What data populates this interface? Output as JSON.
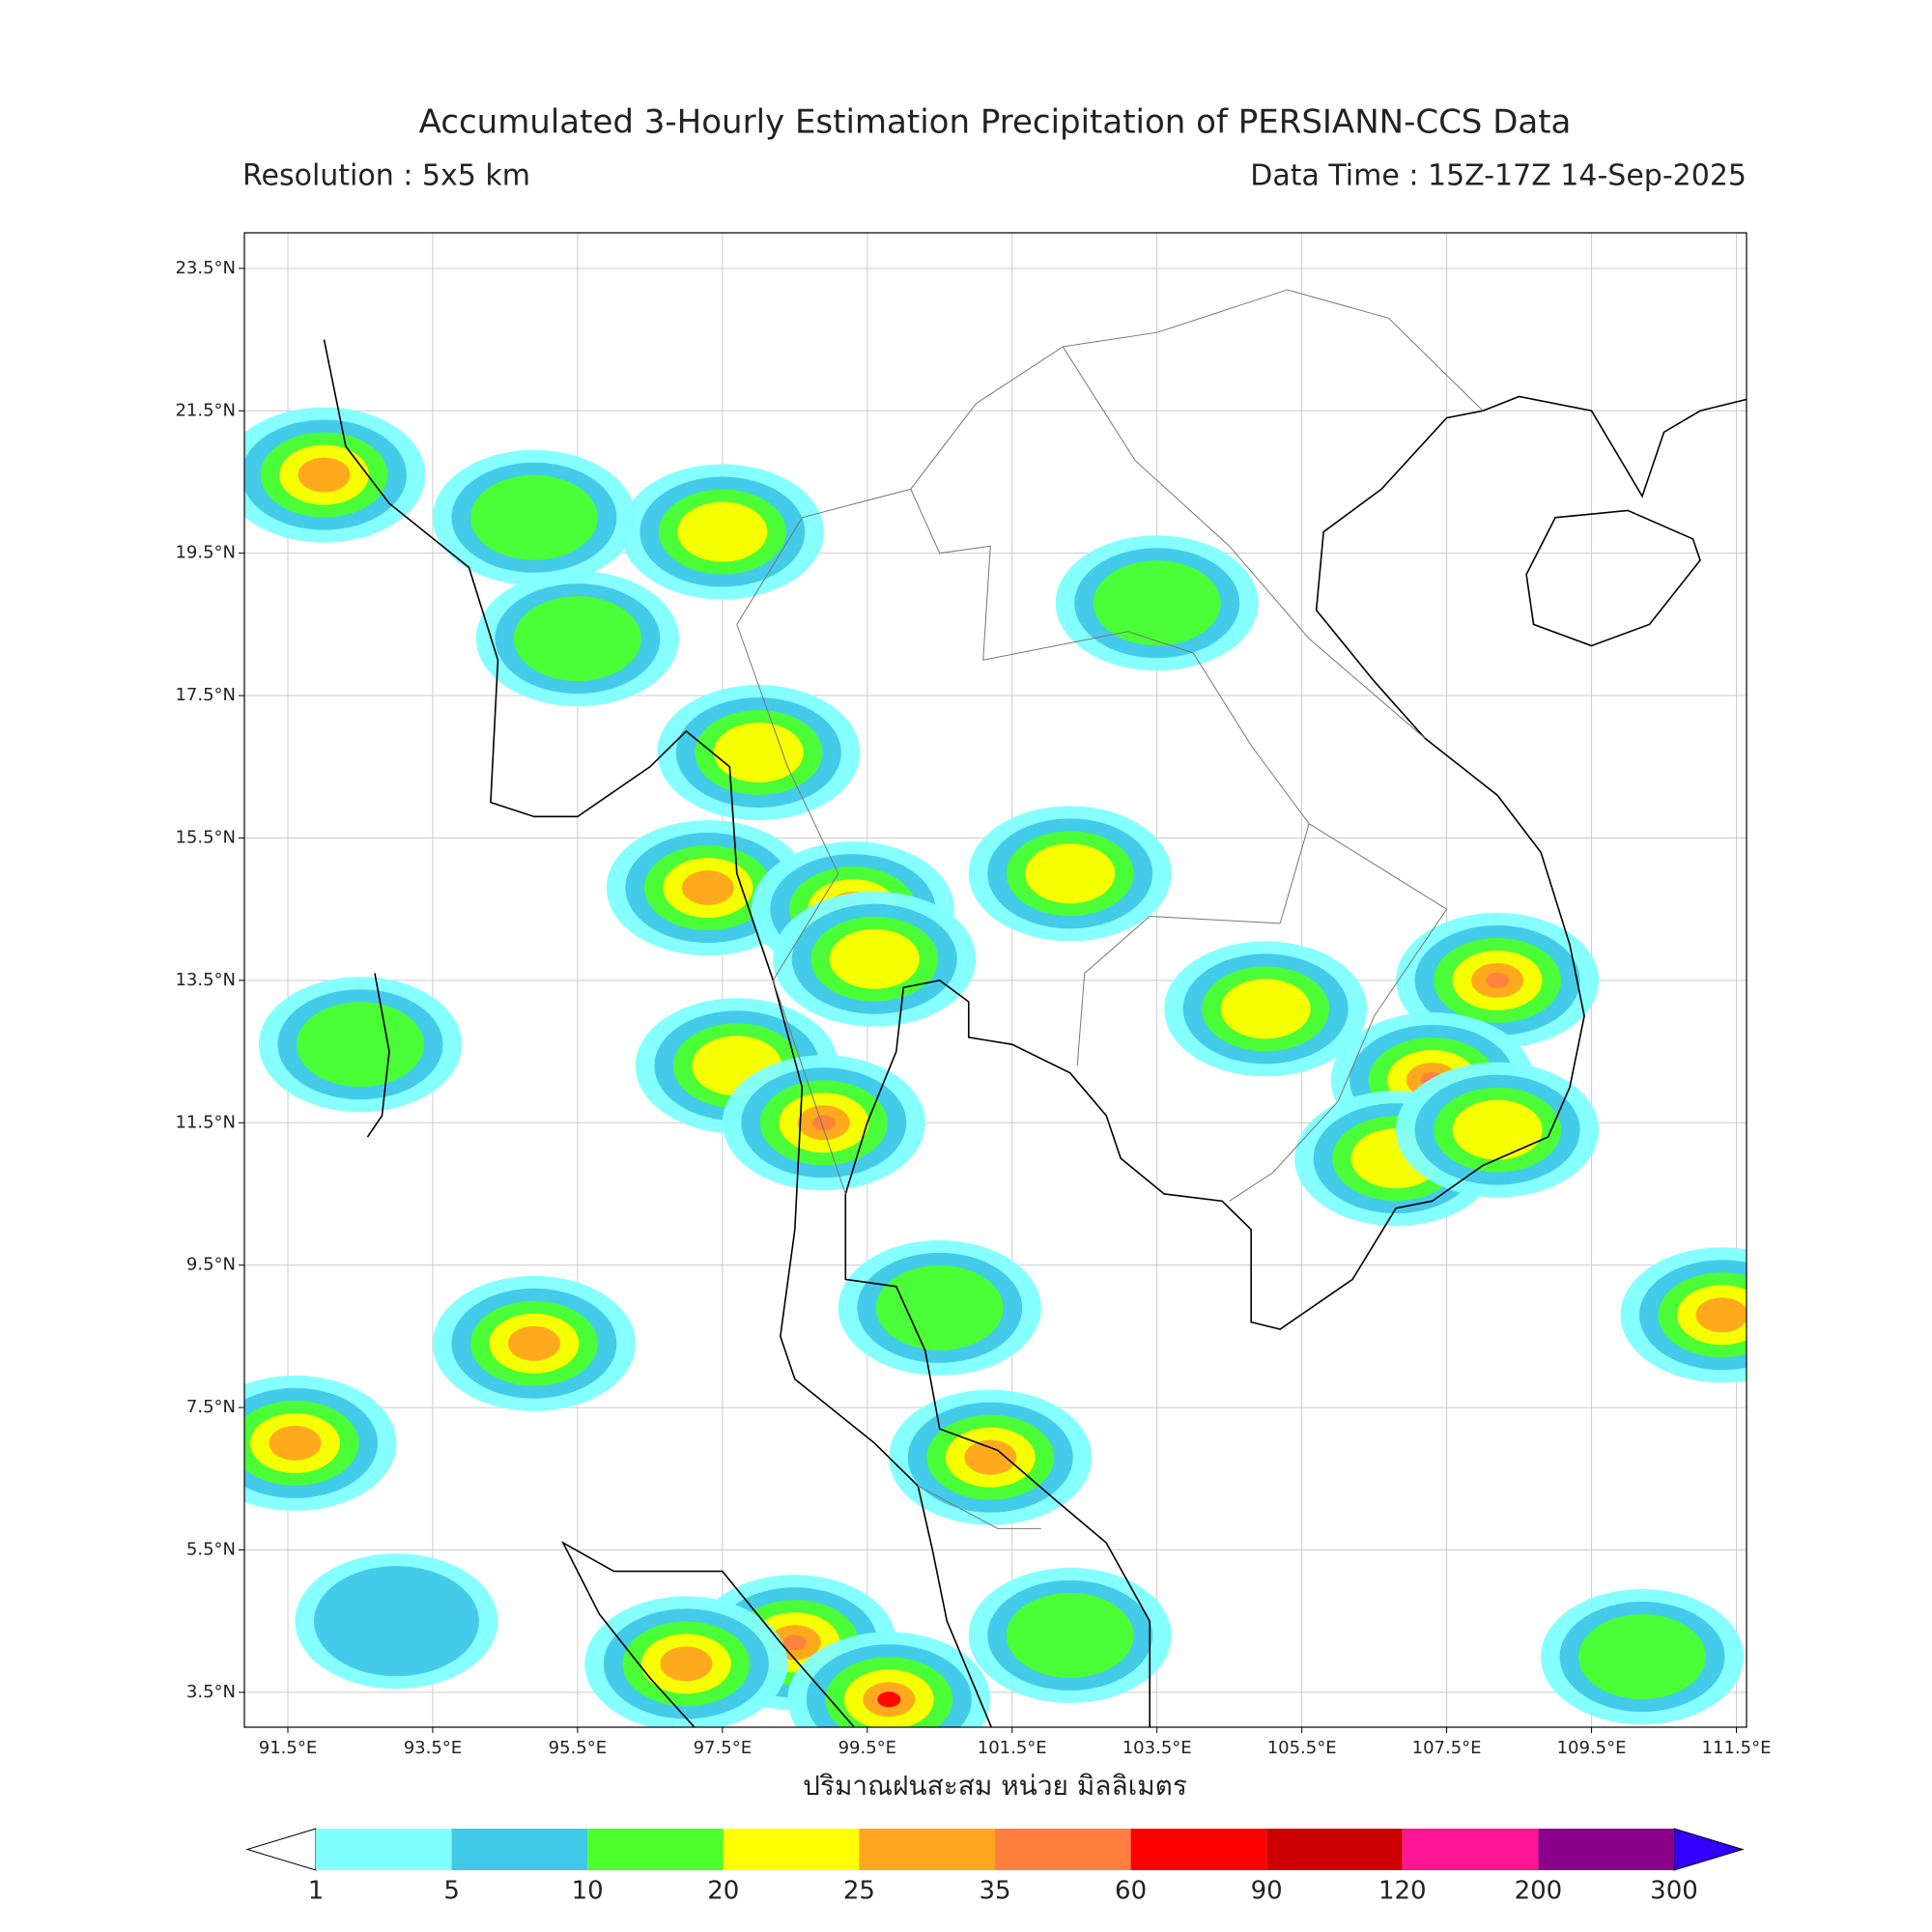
{
  "header": {
    "title": "Accumulated 3-Hourly Estimation Precipitation of PERSIANN-CCS Data",
    "resolution": "Resolution : 5x5 km",
    "data_time": "Data Time : 15Z-17Z 14-Sep-2025"
  },
  "map": {
    "lonlim": [
      90.9,
      111.64
    ],
    "latlim": [
      3.01,
      24.0
    ],
    "xticks": [
      {
        "value": 91.5,
        "label": "91.5°E"
      },
      {
        "value": 93.5,
        "label": "93.5°E"
      },
      {
        "value": 95.5,
        "label": "95.5°E"
      },
      {
        "value": 97.5,
        "label": "97.5°E"
      },
      {
        "value": 99.5,
        "label": "99.5°E"
      },
      {
        "value": 101.5,
        "label": "101.5°E"
      },
      {
        "value": 103.5,
        "label": "103.5°E"
      },
      {
        "value": 105.5,
        "label": "105.5°E"
      },
      {
        "value": 107.5,
        "label": "107.5°E"
      },
      {
        "value": 109.5,
        "label": "109.5°E"
      },
      {
        "value": 111.5,
        "label": "111.5°E"
      }
    ],
    "yticks": [
      {
        "value": 3.5,
        "label": "3.5°N"
      },
      {
        "value": 5.5,
        "label": "5.5°N"
      },
      {
        "value": 7.5,
        "label": "7.5°N"
      },
      {
        "value": 9.5,
        "label": "9.5°N"
      },
      {
        "value": 11.5,
        "label": "11.5°N"
      },
      {
        "value": 13.5,
        "label": "13.5°N"
      },
      {
        "value": 15.5,
        "label": "15.5°N"
      },
      {
        "value": 17.5,
        "label": "17.5°N"
      },
      {
        "value": 19.5,
        "label": "19.5°N"
      },
      {
        "value": 21.5,
        "label": "21.5°N"
      },
      {
        "value": 23.5,
        "label": "23.5°N"
      }
    ],
    "xlabel": "ปริมาณฝนสะสม หน่วย มิลลิเมตร",
    "grid": true
  },
  "rain_cells": [
    {
      "lon": 94.9,
      "lat": 20.0,
      "mm": 10
    },
    {
      "lon": 92.0,
      "lat": 20.6,
      "mm": 25
    },
    {
      "lon": 97.5,
      "lat": 19.8,
      "mm": 20
    },
    {
      "lon": 95.5,
      "lat": 18.3,
      "mm": 10
    },
    {
      "lon": 98.0,
      "lat": 16.7,
      "mm": 20
    },
    {
      "lon": 97.3,
      "lat": 14.8,
      "mm": 25
    },
    {
      "lon": 99.3,
      "lat": 14.5,
      "mm": 35
    },
    {
      "lon": 99.6,
      "lat": 13.8,
      "mm": 20
    },
    {
      "lon": 97.7,
      "lat": 12.3,
      "mm": 20
    },
    {
      "lon": 98.9,
      "lat": 11.5,
      "mm": 35
    },
    {
      "lon": 102.3,
      "lat": 15.0,
      "mm": 20
    },
    {
      "lon": 103.5,
      "lat": 18.8,
      "mm": 10
    },
    {
      "lon": 105.0,
      "lat": 13.1,
      "mm": 20
    },
    {
      "lon": 108.2,
      "lat": 13.5,
      "mm": 35
    },
    {
      "lon": 107.3,
      "lat": 12.1,
      "mm": 35
    },
    {
      "lon": 106.8,
      "lat": 11.0,
      "mm": 20
    },
    {
      "lon": 108.2,
      "lat": 11.4,
      "mm": 20
    },
    {
      "lon": 94.9,
      "lat": 8.4,
      "mm": 25
    },
    {
      "lon": 91.6,
      "lat": 7.0,
      "mm": 25
    },
    {
      "lon": 101.2,
      "lat": 6.8,
      "mm": 25
    },
    {
      "lon": 98.5,
      "lat": 4.2,
      "mm": 35
    },
    {
      "lon": 99.8,
      "lat": 3.4,
      "mm": 60
    },
    {
      "lon": 97.0,
      "lat": 3.9,
      "mm": 25
    },
    {
      "lon": 111.3,
      "lat": 8.8,
      "mm": 25
    },
    {
      "lon": 102.3,
      "lat": 4.3,
      "mm": 10
    },
    {
      "lon": 93.0,
      "lat": 4.5,
      "mm": 5
    },
    {
      "lon": 100.5,
      "lat": 8.9,
      "mm": 10
    },
    {
      "lon": 92.5,
      "lat": 12.6,
      "mm": 10
    },
    {
      "lon": 110.2,
      "lat": 4.0,
      "mm": 10
    }
  ],
  "colorbar": {
    "levels": [
      1,
      5,
      10,
      20,
      25,
      35,
      60,
      90,
      120,
      200,
      300
    ],
    "colors": [
      "#ffffff",
      "#80ffff",
      "#40c8e8",
      "#4cff2c",
      "#ffff00",
      "#ffa51f",
      "#ff7f3f",
      "#ff0000",
      "#cc0000",
      "#ff1493",
      "#8b008b",
      "#3300ff"
    ]
  }
}
